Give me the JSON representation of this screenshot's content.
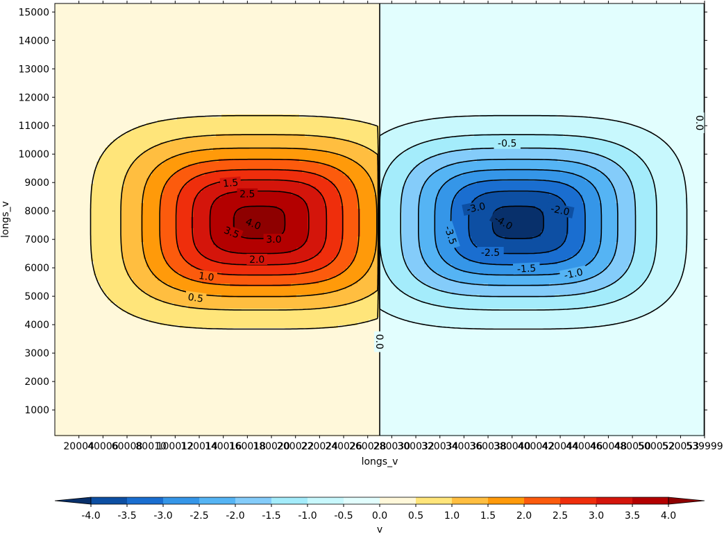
{
  "chart_data": {
    "type": "contour",
    "xlabel": "longs_v",
    "ylabel": "longs_v",
    "xlim": [
      1,
      539999
    ],
    "ylim": [
      100,
      15300
    ],
    "x_ticks": [
      "20004",
      "40006",
      "60008",
      "80010",
      "100012",
      "120014",
      "140016",
      "160018",
      "180020",
      "200022",
      "220024",
      "240026",
      "260028",
      "280030",
      "300032",
      "320034",
      "340036",
      "360038",
      "380040",
      "400042",
      "420044",
      "440046",
      "460048",
      "480050",
      "500052",
      "520053",
      "539999"
    ],
    "y_ticks": [
      1000,
      2000,
      3000,
      4000,
      5000,
      6000,
      7000,
      8000,
      9000,
      10000,
      11000,
      12000,
      13000,
      14000,
      15000
    ],
    "field": {
      "description": "positive lobe and negative lobe of v",
      "lobes": [
        {
          "sign": 1,
          "peak": 4.2,
          "center_x": 170000,
          "center_y": 7600
        },
        {
          "sign": -1,
          "peak": -4.2,
          "center_x": 385000,
          "center_y": 7600
        }
      ]
    },
    "contour_levels": [
      -4.0,
      -3.5,
      -3.0,
      -2.5,
      -2.0,
      -1.5,
      -1.0,
      -0.5,
      0.0,
      0.5,
      1.0,
      1.5,
      2.0,
      2.5,
      3.0,
      3.5,
      4.0
    ],
    "contour_labels": [
      {
        "text": "0.5",
        "x": 117000,
        "y": 4950,
        "rot": 8
      },
      {
        "text": "1.0",
        "x": 126000,
        "y": 5700,
        "rot": 8
      },
      {
        "text": "1.5",
        "x": 146000,
        "y": 8990,
        "rot": -5
      },
      {
        "text": "2.0",
        "x": 168000,
        "y": 6300,
        "rot": 0
      },
      {
        "text": "2.5",
        "x": 160000,
        "y": 8600,
        "rot": 0
      },
      {
        "text": "3.0",
        "x": 182000,
        "y": 7000,
        "rot": 0
      },
      {
        "text": "3.5",
        "x": 147000,
        "y": 7250,
        "rot": 22
      },
      {
        "text": "4.0",
        "x": 165000,
        "y": 7550,
        "rot": 22
      },
      {
        "text": "0.0",
        "x": 270000,
        "y": 3400,
        "rot": 90
      },
      {
        "text": "0.0",
        "x": 536000,
        "y": 11100,
        "rot": 90
      },
      {
        "text": "-0.5",
        "x": 376000,
        "y": 10380,
        "rot": 0
      },
      {
        "text": "-1.0",
        "x": 431000,
        "y": 5800,
        "rot": -12
      },
      {
        "text": "-1.5",
        "x": 392000,
        "y": 5980,
        "rot": -3
      },
      {
        "text": "-2.0",
        "x": 420000,
        "y": 8030,
        "rot": 12
      },
      {
        "text": "-2.5",
        "x": 362000,
        "y": 6540,
        "rot": 0
      },
      {
        "text": "-3.0",
        "x": 350000,
        "y": 8120,
        "rot": -12
      },
      {
        "text": "-3.5",
        "x": 329000,
        "y": 7150,
        "rot": 72
      },
      {
        "text": "-4.0",
        "x": 373000,
        "y": 7600,
        "rot": 30
      }
    ],
    "colorbar": {
      "label": "v",
      "extend": "both",
      "tick_labels": [
        "-4.0",
        "-3.5",
        "-3.0",
        "-2.5",
        "-2.0",
        "-1.5",
        "-1.0",
        "-0.5",
        "0.0",
        "0.5",
        "1.0",
        "1.5",
        "2.0",
        "2.5",
        "3.0",
        "3.5",
        "4.0"
      ],
      "colors": [
        "#08306b",
        "#0d4fa3",
        "#1a6ed0",
        "#3596e8",
        "#55b4f4",
        "#84ccfa",
        "#a4ecfb",
        "#c8f8fd",
        "#e2fefe",
        "#fff8da",
        "#ffe57a",
        "#ffbe40",
        "#ff9a0a",
        "#fc5b0d",
        "#ef2e0c",
        "#d4150b",
        "#b30000",
        "#8e0000"
      ]
    },
    "grid": false
  }
}
